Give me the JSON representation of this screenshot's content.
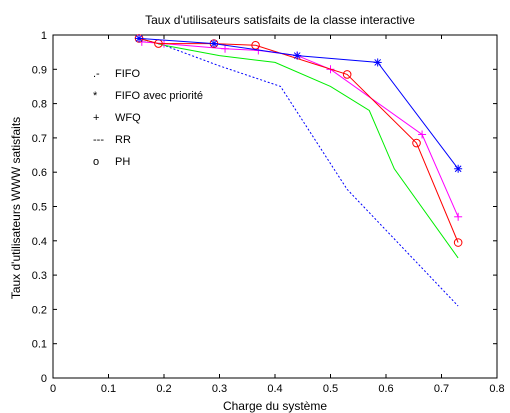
{
  "chart_data": {
    "type": "line",
    "title": "Taux d'utilisateurs satisfaits de la classe interactive",
    "xlabel": "Charge du système",
    "ylabel": "Taux d'utilisateurs WWW satisfaits",
    "xlim": [
      0,
      0.8
    ],
    "ylim": [
      0,
      1
    ],
    "xticks": [
      "0",
      "0.1",
      "0.2",
      "0.3",
      "0.4",
      "0.5",
      "0.6",
      "0.7",
      "0.8"
    ],
    "yticks": [
      "0",
      "0.1",
      "0.2",
      "0.3",
      "0.4",
      "0.5",
      "0.6",
      "0.7",
      "0.8",
      "0.9",
      "1"
    ],
    "grid": false,
    "legend": {
      "placement": "upper-left",
      "entries": [
        {
          "marker": ".-",
          "label": "FIFO"
        },
        {
          "marker": "*",
          "label": "FIFO avec priorité"
        },
        {
          "marker": "+",
          "label": "WFQ"
        },
        {
          "marker": "---",
          "label": "RR"
        },
        {
          "marker": "o",
          "label": "PH"
        }
      ]
    },
    "series": [
      {
        "color": "#0000ff",
        "dash": "2,2",
        "marker": "none",
        "x": [
          0.155,
          0.2,
          0.3,
          0.41,
          0.53,
          0.73
        ],
        "y": [
          0.99,
          0.97,
          0.91,
          0.85,
          0.55,
          0.21
        ]
      },
      {
        "color": "#00ee00",
        "dash": "",
        "marker": "none",
        "x": [
          0.155,
          0.2,
          0.3,
          0.4,
          0.5,
          0.57,
          0.615,
          0.73
        ],
        "y": [
          0.99,
          0.97,
          0.94,
          0.92,
          0.85,
          0.78,
          0.61,
          0.35
        ]
      },
      {
        "color": "#ff00ff",
        "dash": "",
        "marker": "+",
        "x": [
          0.16,
          0.2,
          0.31,
          0.37,
          0.44,
          0.5,
          0.665,
          0.73
        ],
        "y": [
          0.98,
          0.975,
          0.96,
          0.955,
          0.94,
          0.9,
          0.71,
          0.47
        ]
      },
      {
        "color": "#ff0000",
        "dash": "",
        "marker": "o",
        "x": [
          0.155,
          0.19,
          0.29,
          0.365,
          0.53,
          0.655,
          0.73
        ],
        "y": [
          0.99,
          0.975,
          0.975,
          0.97,
          0.885,
          0.685,
          0.395
        ]
      },
      {
        "color": "#0000ff",
        "dash": "",
        "marker": "*",
        "x": [
          0.155,
          0.29,
          0.44,
          0.585,
          0.73
        ],
        "y": [
          0.99,
          0.975,
          0.94,
          0.92,
          0.61
        ]
      }
    ]
  }
}
